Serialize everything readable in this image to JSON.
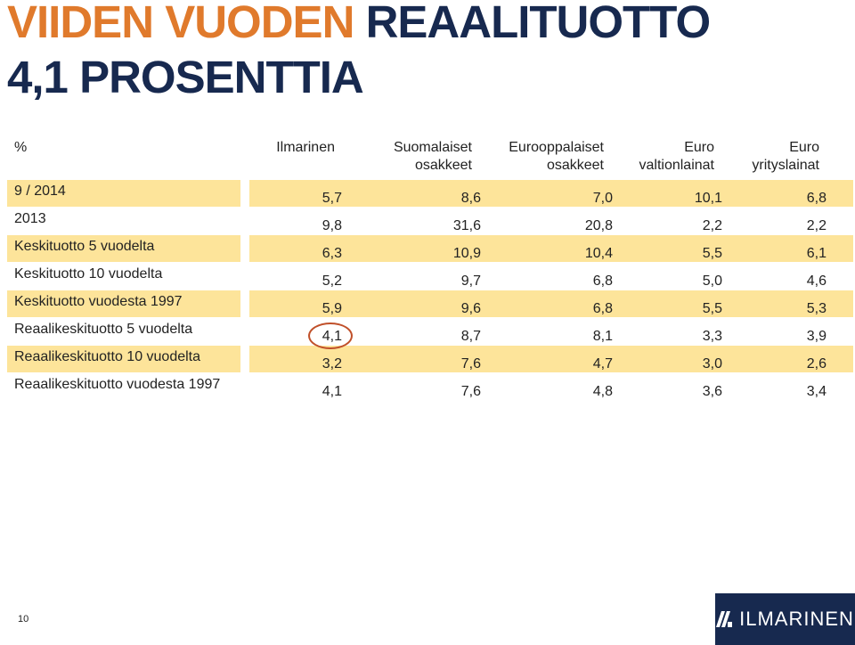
{
  "title": {
    "orange_part": "VIIDEN VUODEN",
    "navy_part": "REAALITUOTTO",
    "line2": "4,1 PROSENTTIA"
  },
  "table": {
    "unit_header": "%",
    "columns": [
      {
        "line1": "Ilmarinen",
        "line2": ""
      },
      {
        "line1": "Suomalaiset",
        "line2": "osakkeet"
      },
      {
        "line1": "Eurooppalaiset",
        "line2": "osakkeet"
      },
      {
        "line1": "Euro",
        "line2": "valtionlainat"
      },
      {
        "line1": "Euro",
        "line2": "yrityslainat"
      }
    ],
    "rows": [
      {
        "label": "9 / 2014",
        "values": [
          "5,7",
          "8,6",
          "7,0",
          "10,1",
          "6,8"
        ]
      },
      {
        "label": "2013",
        "values": [
          "9,8",
          "31,6",
          "20,8",
          "2,2",
          "2,2"
        ]
      },
      {
        "label": "Keskituotto 5 vuodelta",
        "values": [
          "6,3",
          "10,9",
          "10,4",
          "5,5",
          "6,1"
        ]
      },
      {
        "label": "Keskituotto 10 vuodelta",
        "values": [
          "5,2",
          "9,7",
          "6,8",
          "5,0",
          "4,6"
        ]
      },
      {
        "label": "Keskituotto vuodesta 1997",
        "values": [
          "5,9",
          "9,6",
          "6,8",
          "5,5",
          "5,3"
        ]
      },
      {
        "label": "Reaalikeskituotto 5 vuodelta",
        "values": [
          "4,1",
          "8,7",
          "8,1",
          "3,3",
          "3,9"
        ]
      },
      {
        "label": "Reaalikeskituotto 10 vuodelta",
        "values": [
          "3,2",
          "7,6",
          "4,7",
          "3,0",
          "2,6"
        ]
      },
      {
        "label": "Reaalikeskituotto vuodesta 1997",
        "values": [
          "4,1",
          "7,6",
          "4,8",
          "3,6",
          "3,4"
        ]
      }
    ],
    "highlight_color": "#fde49a",
    "circle_color": "#c0502a"
  },
  "footer": {
    "page_number": "10",
    "logo_text": "ILMARINEN"
  },
  "colors": {
    "title_orange": "#e07a2c",
    "title_navy": "#17294f"
  }
}
